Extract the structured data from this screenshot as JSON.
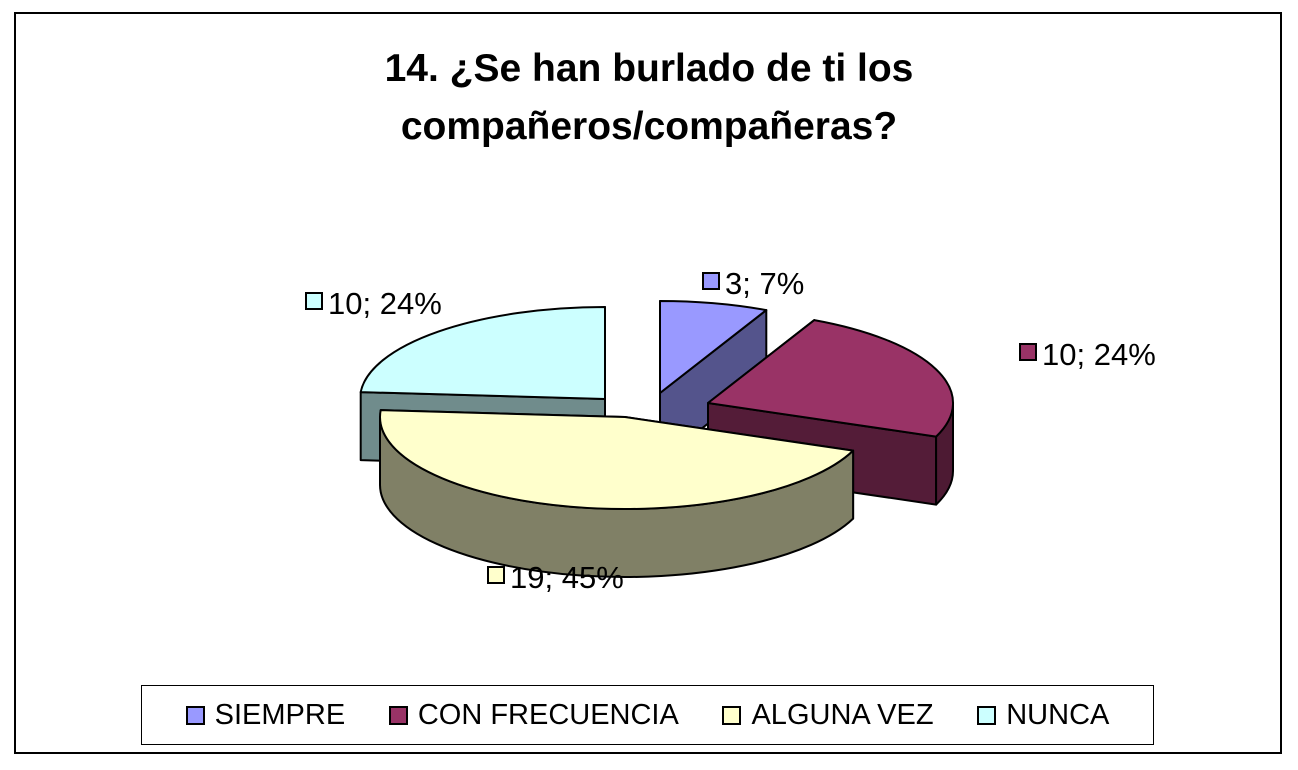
{
  "chart_data": {
    "type": "pie",
    "style": "3d-exploded",
    "title": "14. ¿Se han burlado de ti los compañeros/compañeras?",
    "title_lines": [
      "14. ¿Se han burlado de ti los",
      "compañeros/compañeras?"
    ],
    "categories": [
      "SIEMPRE",
      "CON FRECUENCIA",
      "ALGUNA VEZ",
      "NUNCA"
    ],
    "values": [
      3,
      10,
      19,
      10
    ],
    "percents": [
      7,
      24,
      45,
      24
    ],
    "data_labels": [
      "3; 7%",
      "10; 24%",
      "19; 45%",
      "10; 24%"
    ],
    "colors": [
      "#9999ff",
      "#993366",
      "#ffffcc",
      "#ccffff"
    ],
    "legend": {
      "position": "bottom",
      "entries": [
        "SIEMPRE",
        "CON FRECUENCIA",
        "ALGUNA VEZ",
        "NUNCA"
      ]
    }
  }
}
